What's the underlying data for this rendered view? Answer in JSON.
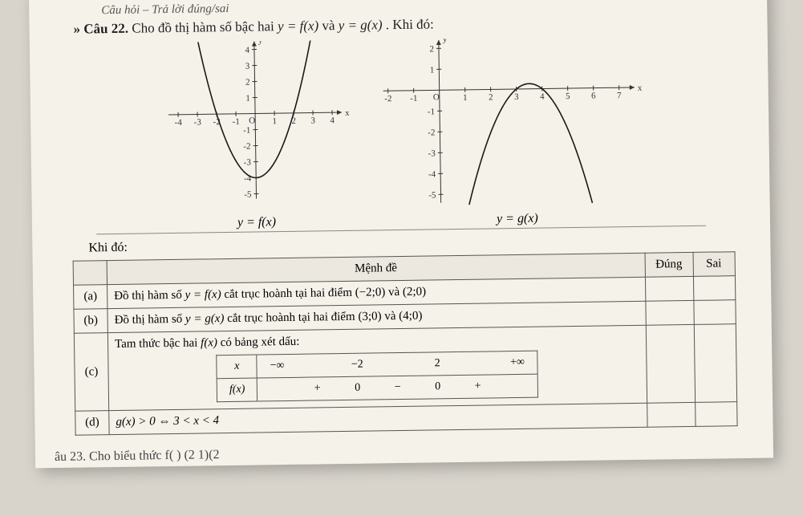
{
  "header_italic": "Câu hỏi – Trả lời đúng/sai",
  "question_prefix": "» Câu 22. ",
  "question_body": "Cho đồ thị hàm số bậc hai ",
  "question_eq1": "y = f(x)",
  "question_mid": " và ",
  "question_eq2": "y = g(x)",
  "question_tail": ". Khi đó:",
  "graph_left_label": "y = f(x)",
  "graph_right_label": "y = g(x)",
  "khi_do": "Khi đó:",
  "table_head_stmt": "Mệnh đề",
  "table_head_dung": "Đúng",
  "table_head_sai": "Sai",
  "rows": {
    "a": {
      "key": "(a)",
      "text_pre": "Đồ thị hàm số ",
      "fn": "y = f(x)",
      "text_post": " cắt trục hoành tại hai điểm (−2;0) và (2;0)"
    },
    "b": {
      "key": "(b)",
      "text_pre": "Đồ thị hàm số ",
      "fn": "y = g(x)",
      "text_post": " cắt trục hoành tại hai điểm (3;0) và (4;0)"
    },
    "c": {
      "key": "(c)",
      "intro_pre": "Tam thức bậc hai ",
      "intro_fn": "f(x)",
      "intro_post": " có bảng xét dấu:"
    },
    "d": {
      "key": "(d)",
      "fn": "g(x) > 0 ⇔ 3 < x < 4"
    }
  },
  "signtable": {
    "rowhead_x": "x",
    "rowhead_f": "f(x)",
    "vals_x": [
      "−∞",
      "",
      "−2",
      "",
      "2",
      "",
      "+∞"
    ],
    "vals_f": [
      "",
      "+",
      "0",
      "−",
      "0",
      "+",
      ""
    ]
  },
  "graph_left": {
    "type": "parabola-up",
    "x_ticks": [
      -4,
      -3,
      -2,
      -1,
      1,
      2,
      3,
      4
    ],
    "y_ticks": [
      -5,
      -4,
      -3,
      -2,
      -1,
      1,
      2,
      3,
      4
    ],
    "vertex": [
      0,
      -4
    ],
    "roots": [
      -2,
      2
    ],
    "axis_color": "#333",
    "curve_color": "#1a1a1a",
    "curve_width": 1.6,
    "background": "#f5f2ea",
    "grid": false
  },
  "graph_right": {
    "type": "parabola-down",
    "x_ticks": [
      -2,
      -1,
      1,
      2,
      3,
      4,
      5,
      6,
      7
    ],
    "y_ticks_pos": [
      1,
      2
    ],
    "y_ticks_neg": [
      -1,
      -2,
      -3,
      -4,
      -5
    ],
    "vertex_approx": [
      3.5,
      0.25
    ],
    "roots": [
      3,
      4
    ],
    "axis_color": "#333",
    "curve_color": "#1a1a1a",
    "curve_width": 1.6,
    "background": "#f5f2ea",
    "grid": false
  },
  "cutoff_text": "âu 23. Cho biểu thức  f(  )   (2    1)(2"
}
